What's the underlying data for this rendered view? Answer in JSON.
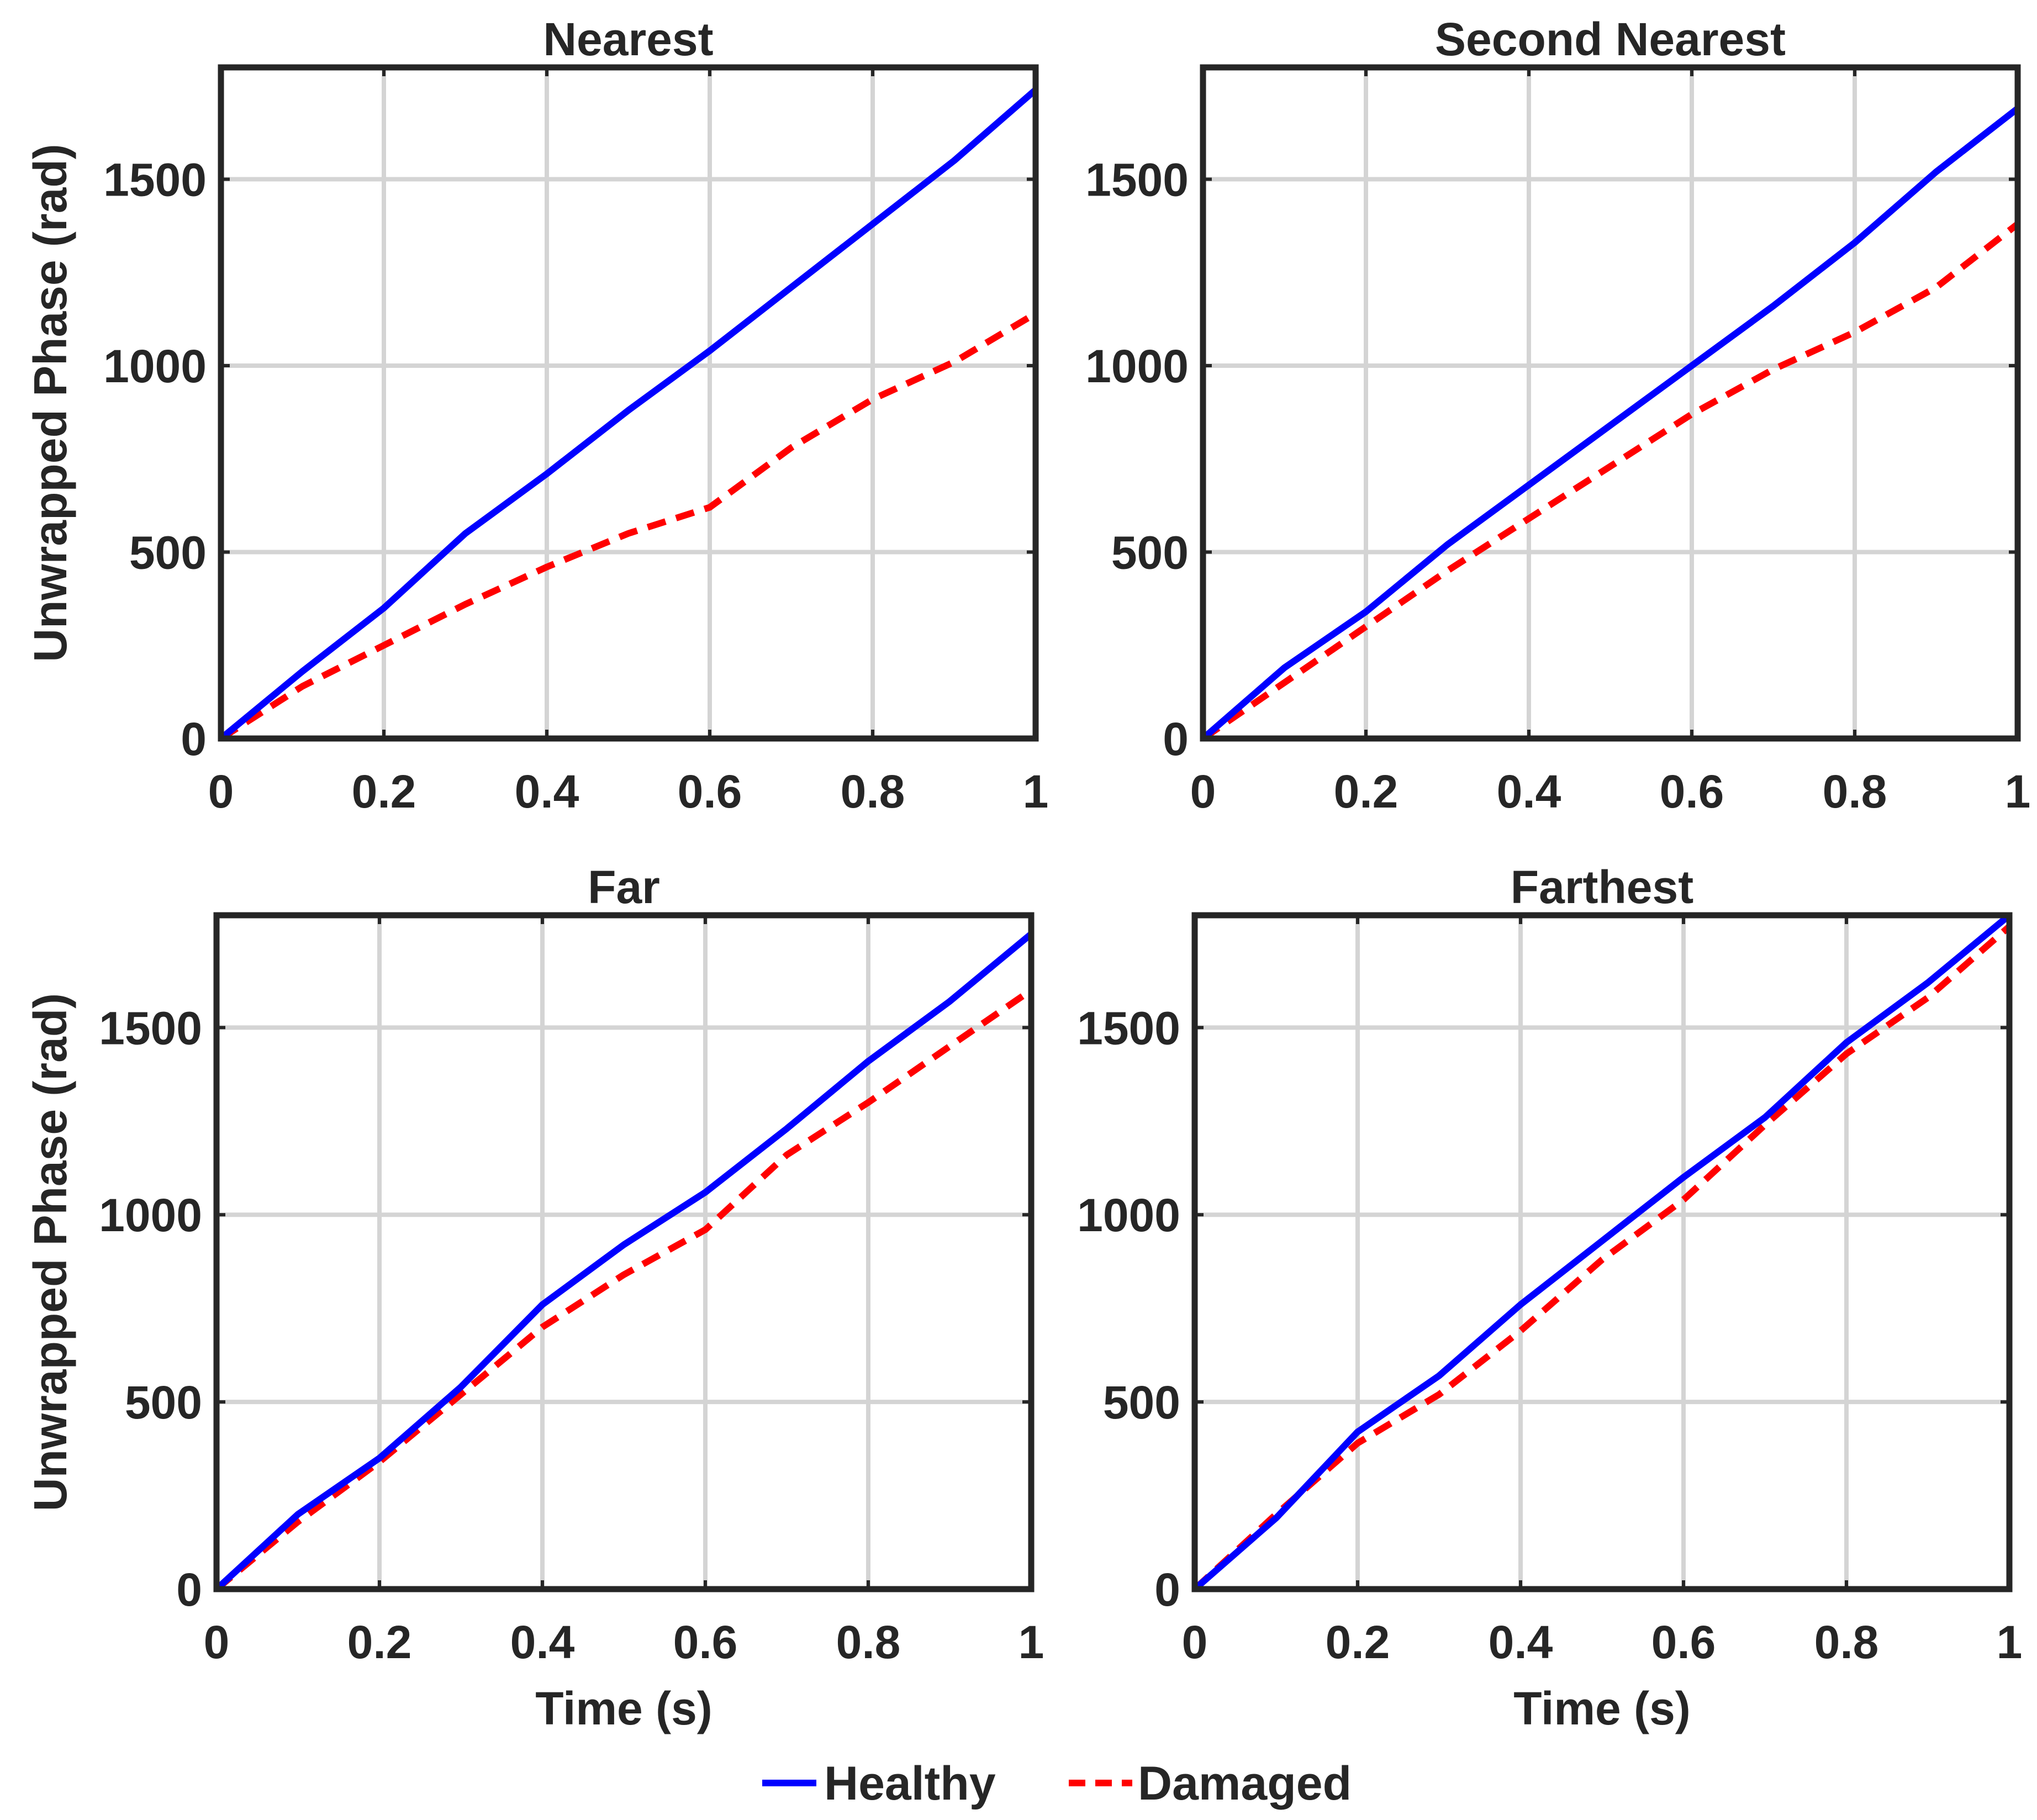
{
  "chart_data": [
    {
      "type": "line",
      "title": "Nearest",
      "xlabel": "",
      "ylabel": "Unwrapped Phase (rad)",
      "xlim": [
        0,
        1
      ],
      "ylim": [
        0,
        1800
      ],
      "xticks": [
        0,
        0.2,
        0.4,
        0.6,
        0.8,
        1
      ],
      "xtick_labels": [
        "0",
        "0.2",
        "0.4",
        "0.6",
        "0.8",
        "1"
      ],
      "yticks": [
        0,
        500,
        1000,
        1500
      ],
      "ytick_labels": [
        "0",
        "500",
        "1000",
        "1500"
      ],
      "grid": true,
      "x": [
        0,
        0.1,
        0.2,
        0.3,
        0.4,
        0.5,
        0.6,
        0.7,
        0.8,
        0.9,
        1.0
      ],
      "series": [
        {
          "name": "Healthy",
          "values": [
            0,
            180,
            350,
            550,
            710,
            880,
            1040,
            1210,
            1380,
            1550,
            1740
          ]
        },
        {
          "name": "Damaged",
          "values": [
            0,
            140,
            250,
            360,
            460,
            550,
            620,
            780,
            910,
            1010,
            1140
          ]
        }
      ]
    },
    {
      "type": "line",
      "title": "Second Nearest",
      "xlabel": "",
      "ylabel": "",
      "xlim": [
        0,
        1
      ],
      "ylim": [
        0,
        1800
      ],
      "xticks": [
        0,
        0.2,
        0.4,
        0.6,
        0.8,
        1
      ],
      "xtick_labels": [
        "0",
        "0.2",
        "0.4",
        "0.6",
        "0.8",
        "1"
      ],
      "yticks": [
        0,
        500,
        1000,
        1500
      ],
      "ytick_labels": [
        "0",
        "500",
        "1000",
        "1500"
      ],
      "grid": true,
      "x": [
        0,
        0.1,
        0.2,
        0.3,
        0.4,
        0.5,
        0.6,
        0.7,
        0.8,
        0.9,
        1.0
      ],
      "series": [
        {
          "name": "Healthy",
          "values": [
            0,
            190,
            340,
            520,
            680,
            840,
            1000,
            1160,
            1330,
            1520,
            1690
          ]
        },
        {
          "name": "Damaged",
          "values": [
            0,
            150,
            300,
            450,
            590,
            730,
            870,
            990,
            1090,
            1210,
            1380
          ]
        }
      ]
    },
    {
      "type": "line",
      "title": "Far",
      "xlabel": "Time (s)",
      "ylabel": "Unwrapped Phase (rad)",
      "xlim": [
        0,
        1
      ],
      "ylim": [
        0,
        1800
      ],
      "xticks": [
        0,
        0.2,
        0.4,
        0.6,
        0.8,
        1
      ],
      "xtick_labels": [
        "0",
        "0.2",
        "0.4",
        "0.6",
        "0.8",
        "1"
      ],
      "yticks": [
        0,
        500,
        1000,
        1500
      ],
      "ytick_labels": [
        "0",
        "500",
        "1000",
        "1500"
      ],
      "grid": true,
      "x": [
        0,
        0.1,
        0.2,
        0.3,
        0.4,
        0.5,
        0.6,
        0.7,
        0.8,
        0.9,
        1.0
      ],
      "series": [
        {
          "name": "Healthy",
          "values": [
            0,
            200,
            350,
            540,
            760,
            920,
            1060,
            1230,
            1410,
            1570,
            1750
          ]
        },
        {
          "name": "Damaged",
          "values": [
            0,
            180,
            340,
            520,
            700,
            840,
            960,
            1160,
            1300,
            1450,
            1600
          ]
        }
      ]
    },
    {
      "type": "line",
      "title": "Farthest",
      "xlabel": "Time (s)",
      "ylabel": "",
      "xlim": [
        0,
        1
      ],
      "ylim": [
        0,
        1800
      ],
      "xticks": [
        0,
        0.2,
        0.4,
        0.6,
        0.8,
        1
      ],
      "xtick_labels": [
        "0",
        "0.2",
        "0.4",
        "0.6",
        "0.8",
        "1"
      ],
      "yticks": [
        0,
        500,
        1000,
        1500
      ],
      "ytick_labels": [
        "0",
        "500",
        "1000",
        "1500"
      ],
      "grid": true,
      "x": [
        0,
        0.1,
        0.2,
        0.3,
        0.4,
        0.5,
        0.6,
        0.7,
        0.8,
        0.9,
        1.0
      ],
      "series": [
        {
          "name": "Healthy",
          "values": [
            0,
            190,
            420,
            570,
            760,
            930,
            1100,
            1260,
            1460,
            1620,
            1800
          ]
        },
        {
          "name": "Damaged",
          "values": [
            0,
            200,
            390,
            520,
            690,
            880,
            1040,
            1240,
            1430,
            1580,
            1770
          ]
        }
      ]
    }
  ],
  "legend": {
    "placement": "bottom-center",
    "items": [
      {
        "label": "Healthy",
        "color": "#0000ff",
        "style": "solid"
      },
      {
        "label": "Damaged",
        "color": "#ff0000",
        "style": "dashed"
      }
    ]
  },
  "colors": {
    "healthy": "#0000ff",
    "damaged": "#ff0000",
    "axes": "#262626",
    "grid": "#d4d4d4"
  }
}
